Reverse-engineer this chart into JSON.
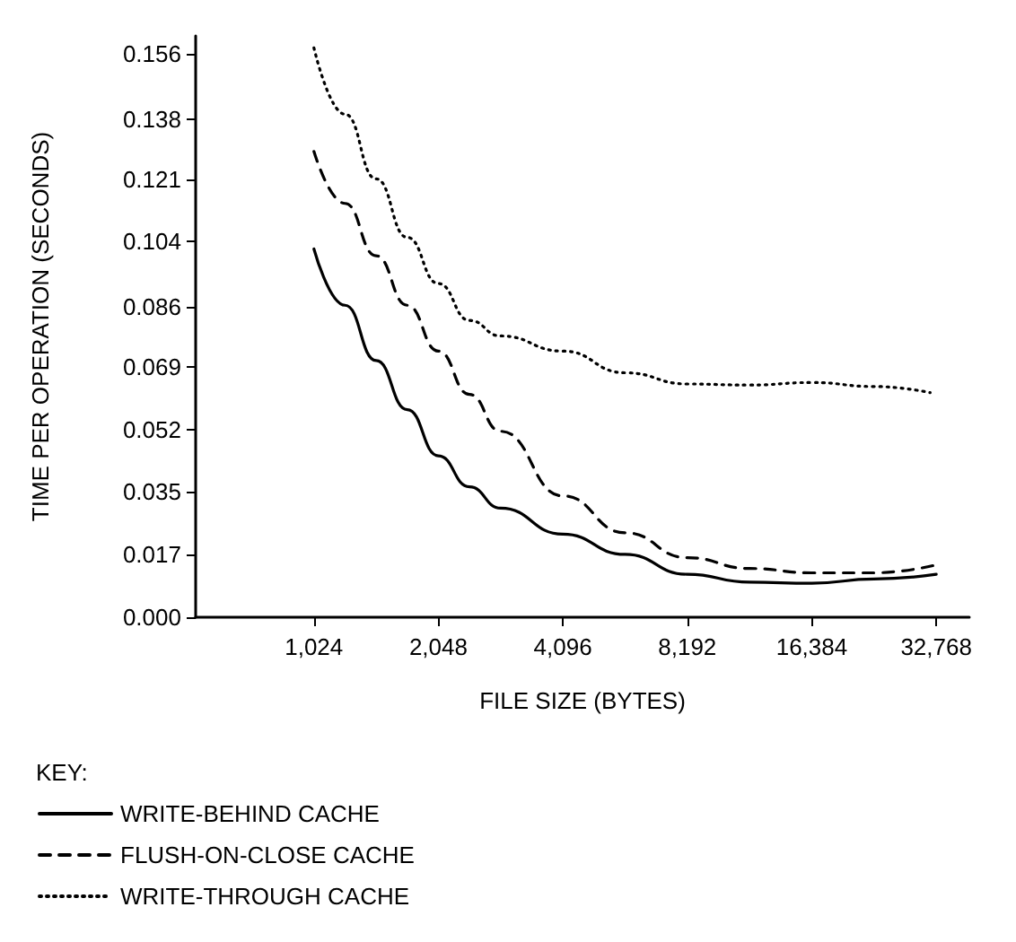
{
  "chart_data": {
    "type": "line",
    "xlabel": "FILE SIZE (BYTES)",
    "ylabel": "TIME PER OPERATION (SECONDS)",
    "legend_title": "KEY:",
    "legend": "bottom left",
    "grid": false,
    "marker": "none",
    "log": "x",
    "x": [
      1024,
      1218,
      1448,
      1722,
      2048,
      2435,
      2896,
      4096,
      5793,
      8192,
      11585,
      16384,
      23170,
      32768
    ],
    "xlim": [
      530,
      39400
    ],
    "xticks": [
      {
        "value": 1024,
        "label": "1,024"
      },
      {
        "value": 2048,
        "label": "2,048"
      },
      {
        "value": 4096,
        "label": "4,096"
      },
      {
        "value": 8192,
        "label": "8,192"
      },
      {
        "value": 16384,
        "label": "16,384"
      },
      {
        "value": 32768,
        "label": "32,768"
      }
    ],
    "ylim": [
      0,
      0.161
    ],
    "yticks": [
      {
        "value": 0,
        "label": "0.000"
      },
      {
        "value": 0.017333,
        "label": "0.017"
      },
      {
        "value": 0.034667,
        "label": "0.035"
      },
      {
        "value": 0.052,
        "label": "0.052"
      },
      {
        "value": 0.069333,
        "label": "0.069"
      },
      {
        "value": 0.086,
        "label": "0.086"
      },
      {
        "value": 0.104,
        "label": "0.104"
      },
      {
        "value": 0.121333,
        "label": "0.121"
      },
      {
        "value": 0.138,
        "label": "0.138"
      },
      {
        "value": 0.156,
        "label": "0.156"
      }
    ],
    "series": [
      {
        "name": "WRITE-BEHIND CACHE",
        "color": "#000000",
        "line_style": "solid",
        "values": [
          0.102,
          0.0864,
          0.0711,
          0.0575,
          0.0447,
          0.0361,
          0.0302,
          0.023,
          0.0174,
          0.0119,
          0.0097,
          0.0094,
          0.0106,
          0.0119
        ]
      },
      {
        "name": "FLUSH-ON-CLOSE CACHE",
        "color": "#000000",
        "line_style": "dashed",
        "values": [
          0.129,
          0.1146,
          0.1001,
          0.0864,
          0.0737,
          0.0617,
          0.0515,
          0.0336,
          0.0234,
          0.0165,
          0.0135,
          0.0123,
          0.0123,
          0.0145
        ]
      },
      {
        "name": "WRITE-THROUGH CACHE",
        "color": "#000000",
        "line_style": "dotted",
        "x": [
          1024,
          1218,
          1448,
          1722,
          2048,
          2435,
          2896,
          4096,
          5793,
          8192,
          11585,
          16384,
          23170,
          31675
        ],
        "values": [
          0.1577,
          0.1393,
          0.1214,
          0.1052,
          0.0924,
          0.0822,
          0.0779,
          0.0737,
          0.0677,
          0.0646,
          0.0643,
          0.065,
          0.0639,
          0.0622
        ]
      }
    ]
  }
}
